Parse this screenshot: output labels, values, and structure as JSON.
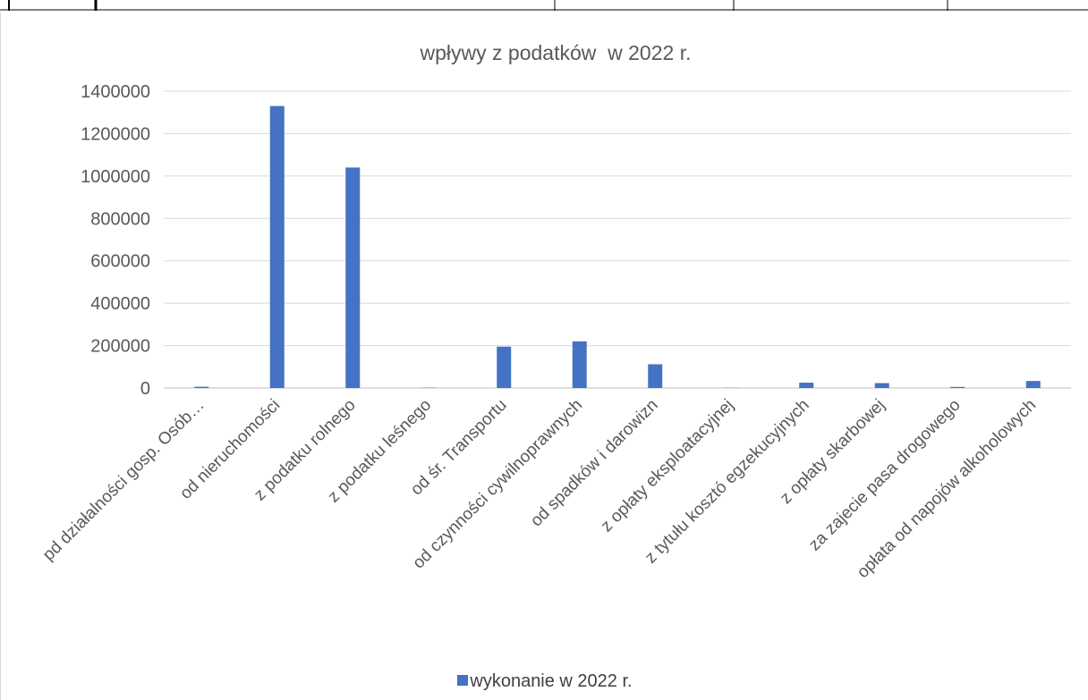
{
  "chart_data": {
    "type": "bar",
    "title": "wpływy z podatków  w 2022 r.",
    "xlabel": "",
    "ylabel": "",
    "ylim": [
      0,
      1400000
    ],
    "yticks": [
      0,
      200000,
      400000,
      600000,
      800000,
      1000000,
      1200000,
      1400000
    ],
    "grid": true,
    "legend_position": "bottom",
    "categories": [
      "pd działalności gosp. Osób…",
      "od nieruchomości",
      "z podatku rolnego",
      "z podatku leśnego",
      "od śr. Transportu",
      "od czynności cywilnoprawnych",
      "od spadków i darowizn",
      "z opłaty eksploatacyjnej",
      "z tytułu kosztó egzekucyjnych",
      "z opłaty skarbowej",
      "za zajecie pasa drogowego",
      "opłata od napojów alkoholowych"
    ],
    "series": [
      {
        "name": "wykonanie w 2022 r.",
        "color": "#4472c4",
        "values": [
          6000,
          1330000,
          1040000,
          1500,
          195000,
          220000,
          112000,
          1000,
          25000,
          23000,
          5000,
          33000
        ]
      }
    ]
  }
}
